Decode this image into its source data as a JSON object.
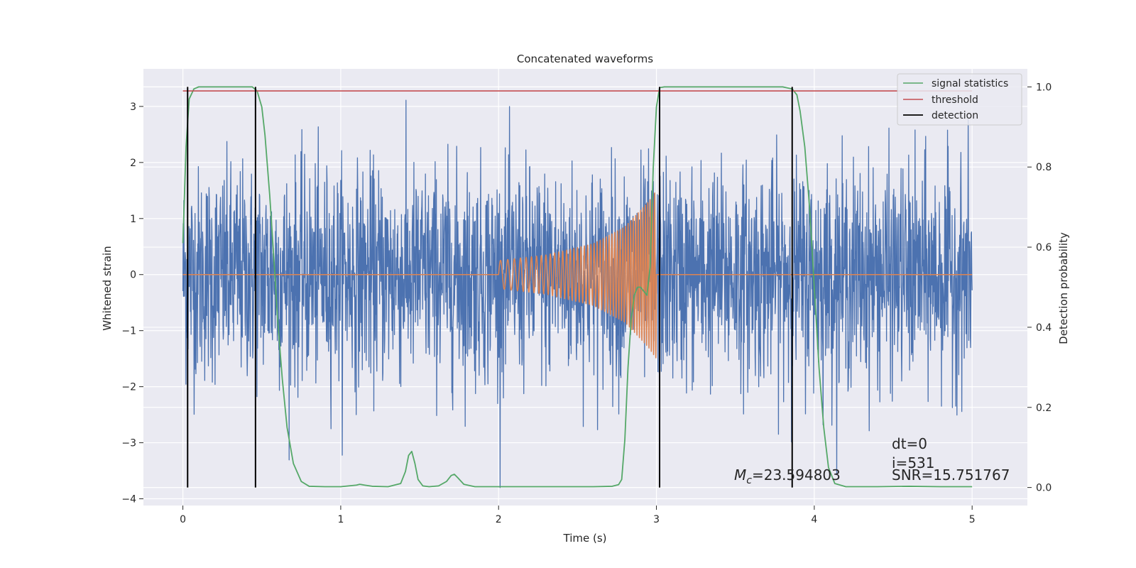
{
  "chart_data": {
    "type": "line",
    "title": "Concatenated waveforms",
    "xlabel": "Time (s)",
    "ylabel_left": "Whitened strain",
    "ylabel_right": "Detection probability",
    "xlim": [
      -0.25,
      5.35
    ],
    "ylim_left": [
      -4.12,
      3.67
    ],
    "ylim_right": [
      -0.045,
      1.045
    ],
    "x_ticks": [
      0,
      1,
      2,
      3,
      4,
      5
    ],
    "y_ticks_left": [
      -4,
      -3,
      -2,
      -1,
      0,
      1,
      2,
      3
    ],
    "y_ticks_right": [
      0.0,
      0.2,
      0.4,
      0.6,
      0.8,
      1.0
    ],
    "x_tick_labels": [
      "0",
      "1",
      "2",
      "3",
      "4",
      "5"
    ],
    "y_tick_labels_left": [
      "−4",
      "−3",
      "−2",
      "−1",
      "0",
      "1",
      "2",
      "3"
    ],
    "y_tick_labels_right": [
      "0.0",
      "0.2",
      "0.4",
      "0.6",
      "0.8",
      "1.0"
    ],
    "grid": true,
    "legend_position": "top-right",
    "colors": {
      "plot_bg": "#eaeaf2",
      "grid": "#ffffff",
      "strain": "#4c72b0",
      "template": "#dd8452",
      "signal_statistics": "#55a868",
      "threshold": "#c44e52",
      "detection": "#000000"
    },
    "series": [
      {
        "key": "strain",
        "axis": "left",
        "x_range": [
          0,
          5
        ],
        "amplitude_range": [
          -3.8,
          3.3
        ],
        "note_values": "dense noise, roughly symmetric about 0"
      },
      {
        "key": "template",
        "axis": "left",
        "x": [
          0,
          2.0,
          2.0,
          2.3,
          2.6,
          2.8,
          2.95,
          3.0,
          3.0,
          5.0
        ],
        "envelope": [
          0,
          0,
          0.25,
          0.35,
          0.55,
          0.85,
          1.3,
          1.5,
          0,
          0
        ],
        "frequency_hz_start": 20,
        "frequency_hz_end": 70
      },
      {
        "name": "signal statistics",
        "axis": "right",
        "x": [
          0.0,
          0.02,
          0.04,
          0.07,
          0.1,
          0.2,
          0.3,
          0.4,
          0.44,
          0.47,
          0.5,
          0.52,
          0.55,
          0.58,
          0.6,
          0.63,
          0.66,
          0.7,
          0.75,
          0.8,
          0.9,
          1.0,
          1.1,
          1.12,
          1.15,
          1.2,
          1.3,
          1.38,
          1.41,
          1.43,
          1.45,
          1.47,
          1.49,
          1.52,
          1.56,
          1.62,
          1.67,
          1.7,
          1.72,
          1.74,
          1.78,
          1.85,
          2.0,
          2.2,
          2.4,
          2.6,
          2.72,
          2.76,
          2.78,
          2.8,
          2.82,
          2.84,
          2.86,
          2.88,
          2.9,
          2.92,
          2.94,
          2.96,
          2.98,
          3.0,
          3.02,
          3.05,
          3.2,
          3.5,
          3.8,
          3.86,
          3.89,
          3.91,
          3.94,
          3.97,
          4.0,
          4.03,
          4.06,
          4.09,
          4.13,
          4.2,
          4.4,
          4.6,
          4.8,
          5.0
        ],
        "y": [
          0.61,
          0.85,
          0.97,
          0.995,
          1.0,
          1.0,
          1.0,
          1.0,
          1.0,
          0.99,
          0.95,
          0.88,
          0.73,
          0.55,
          0.42,
          0.27,
          0.15,
          0.06,
          0.015,
          0.003,
          0.002,
          0.002,
          0.006,
          0.008,
          0.006,
          0.003,
          0.002,
          0.01,
          0.04,
          0.08,
          0.09,
          0.06,
          0.02,
          0.004,
          0.002,
          0.004,
          0.015,
          0.03,
          0.033,
          0.025,
          0.008,
          0.002,
          0.002,
          0.002,
          0.002,
          0.002,
          0.003,
          0.007,
          0.02,
          0.12,
          0.3,
          0.42,
          0.48,
          0.5,
          0.5,
          0.49,
          0.48,
          0.55,
          0.8,
          0.95,
          0.998,
          1.0,
          1.0,
          1.0,
          1.0,
          0.995,
          0.98,
          0.94,
          0.85,
          0.7,
          0.5,
          0.3,
          0.15,
          0.05,
          0.01,
          0.002,
          0.002,
          0.003,
          0.002,
          0.002
        ]
      },
      {
        "name": "threshold",
        "axis": "right",
        "x": [
          0,
          5
        ],
        "y": [
          0.99,
          0.99
        ]
      },
      {
        "name": "detection",
        "axis": "right",
        "x_events": [
          0.03,
          0.46,
          3.02,
          3.86
        ],
        "y_range": [
          0,
          1
        ]
      }
    ],
    "legend": [
      "signal statistics",
      "threshold",
      "detection"
    ],
    "annotations": [
      {
        "key": "mc",
        "symbol": "M",
        "subscript": "c",
        "text": "=23.594803"
      },
      {
        "key": "dt",
        "text": "dt=0"
      },
      {
        "key": "i",
        "text": "i=531"
      },
      {
        "key": "snr",
        "text": "SNR=15.751767"
      }
    ]
  }
}
